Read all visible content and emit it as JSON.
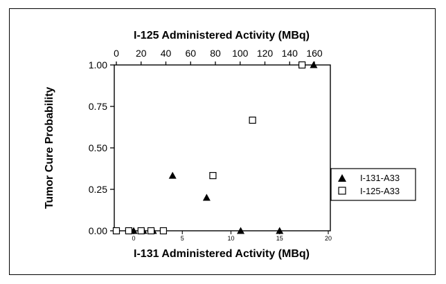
{
  "chart_data": {
    "type": "scatter",
    "title": "",
    "top_axis": {
      "label": "I-125 Administered Activity (MBq)",
      "range": [
        0,
        160
      ],
      "ticks": [
        "0",
        "20",
        "40",
        "60",
        "80",
        "100",
        "120",
        "140",
        "160"
      ]
    },
    "bottom_axis": {
      "label": "I-131 Administered Activity (MBq)",
      "range": [
        0,
        20
      ],
      "ticks": [
        "0",
        "5",
        "10",
        "15",
        "20"
      ]
    },
    "left_axis": {
      "label": "Tumor Cure Probability",
      "range": [
        0,
        1
      ],
      "ticks": [
        "0.00",
        "0.25",
        "0.50",
        "0.75",
        "1.00"
      ]
    },
    "legend_position": "right",
    "grid": false,
    "series": [
      {
        "name": "I-131-A33",
        "marker": "filled-triangle",
        "axis": "bottom",
        "points": [
          {
            "x": 0,
            "y": 0
          },
          {
            "x": 1,
            "y": 0
          },
          {
            "x": 2,
            "y": 0
          },
          {
            "x": 4,
            "y": 0.333
          },
          {
            "x": 7.5,
            "y": 0.2
          },
          {
            "x": 11,
            "y": 0
          },
          {
            "x": 15,
            "y": 0
          },
          {
            "x": 18.5,
            "y": 1.0
          }
        ]
      },
      {
        "name": "I-125-A33",
        "marker": "open-square",
        "axis": "top",
        "points": [
          {
            "x": 0,
            "y": 0
          },
          {
            "x": 10,
            "y": 0
          },
          {
            "x": 20,
            "y": 0
          },
          {
            "x": 28,
            "y": 0
          },
          {
            "x": 38,
            "y": 0
          },
          {
            "x": 78,
            "y": 0.333
          },
          {
            "x": 110,
            "y": 0.667
          },
          {
            "x": 150,
            "y": 1.0
          }
        ]
      }
    ]
  }
}
